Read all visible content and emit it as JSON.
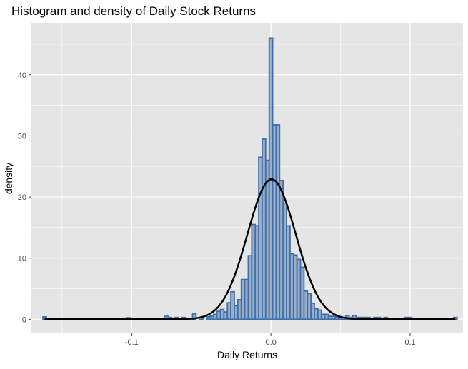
{
  "chart_data": {
    "type": "histogram",
    "title": "Histogram and density of Daily Stock Returns",
    "xlabel": "Daily Returns",
    "ylabel": "density",
    "xlim": [
      -0.172,
      0.138
    ],
    "ylim": [
      -2.3,
      48.5
    ],
    "x_ticks": [
      -0.1,
      0.0,
      0.1
    ],
    "x_tick_labels": [
      "-0.1",
      "0.0",
      "0.1"
    ],
    "y_ticks": [
      0,
      10,
      20,
      30,
      40
    ],
    "y_tick_labels": [
      "0",
      "10",
      "20",
      "30",
      "40"
    ],
    "grid": true,
    "legend": "none",
    "bin_width": 0.0025,
    "bins": [
      {
        "x": -0.1625,
        "density": 0.4
      },
      {
        "x": -0.1025,
        "density": 0.25
      },
      {
        "x": -0.075,
        "density": 0.5
      },
      {
        "x": -0.0725,
        "density": 0.3
      },
      {
        "x": -0.0675,
        "density": 0.3
      },
      {
        "x": -0.0625,
        "density": 0.3
      },
      {
        "x": -0.055,
        "density": 0.9
      },
      {
        "x": -0.05,
        "density": 0.3
      },
      {
        "x": -0.045,
        "density": 0.4
      },
      {
        "x": -0.0425,
        "density": 0.5
      },
      {
        "x": -0.04,
        "density": 0.8
      },
      {
        "x": -0.0375,
        "density": 1.3
      },
      {
        "x": -0.035,
        "density": 1.6
      },
      {
        "x": -0.0325,
        "density": 1.2
      },
      {
        "x": -0.03,
        "density": 2.7
      },
      {
        "x": -0.0275,
        "density": 4.5
      },
      {
        "x": -0.025,
        "density": 2.2
      },
      {
        "x": -0.0225,
        "density": 3.2
      },
      {
        "x": -0.02,
        "density": 6.5
      },
      {
        "x": -0.0175,
        "density": 6.5
      },
      {
        "x": -0.015,
        "density": 10.4
      },
      {
        "x": -0.0125,
        "density": 15.5
      },
      {
        "x": -0.01,
        "density": 15.3
      },
      {
        "x": -0.0075,
        "density": 26.5
      },
      {
        "x": -0.005,
        "density": 29.5
      },
      {
        "x": -0.0025,
        "density": 26.0
      },
      {
        "x": 0.0,
        "density": 46.0
      },
      {
        "x": 0.0025,
        "density": 31.8
      },
      {
        "x": 0.005,
        "density": 31.8
      },
      {
        "x": 0.0075,
        "density": 22.7
      },
      {
        "x": 0.01,
        "density": 19.0
      },
      {
        "x": 0.0125,
        "density": 15.3
      },
      {
        "x": 0.015,
        "density": 10.7
      },
      {
        "x": 0.0175,
        "density": 10.5
      },
      {
        "x": 0.02,
        "density": 9.8
      },
      {
        "x": 0.0225,
        "density": 8.5
      },
      {
        "x": 0.025,
        "density": 4.6
      },
      {
        "x": 0.0275,
        "density": 4.2
      },
      {
        "x": 0.03,
        "density": 2.6
      },
      {
        "x": 0.0325,
        "density": 1.7
      },
      {
        "x": 0.035,
        "density": 1.5
      },
      {
        "x": 0.0375,
        "density": 0.8
      },
      {
        "x": 0.04,
        "density": 0.8
      },
      {
        "x": 0.0425,
        "density": 0.5
      },
      {
        "x": 0.045,
        "density": 0.5
      },
      {
        "x": 0.0475,
        "density": 0.4
      },
      {
        "x": 0.05,
        "density": 0.3
      },
      {
        "x": 0.0525,
        "density": 0.3
      },
      {
        "x": 0.055,
        "density": 0.6
      },
      {
        "x": 0.0575,
        "density": 0.3
      },
      {
        "x": 0.06,
        "density": 0.6
      },
      {
        "x": 0.0625,
        "density": 0.3
      },
      {
        "x": 0.065,
        "density": 0.3
      },
      {
        "x": 0.0675,
        "density": 0.3
      },
      {
        "x": 0.07,
        "density": 0.3
      },
      {
        "x": 0.075,
        "density": 0.3
      },
      {
        "x": 0.0775,
        "density": 0.3
      },
      {
        "x": 0.0825,
        "density": 0.3
      },
      {
        "x": 0.0975,
        "density": 0.3
      },
      {
        "x": 0.1,
        "density": 0.3
      },
      {
        "x": 0.1325,
        "density": 0.3
      }
    ],
    "density_curve": {
      "type": "normal",
      "mean": 0.0005,
      "sd": 0.0174,
      "x_range": [
        -0.1625,
        0.1325
      ],
      "peak": 22.9
    },
    "colors": {
      "bar_fill": "#9aaec8",
      "bar_outline": "#3f6fa8",
      "curve": "#000000",
      "panel_bg": "#e5e5e5",
      "grid": "#ffffff"
    }
  }
}
